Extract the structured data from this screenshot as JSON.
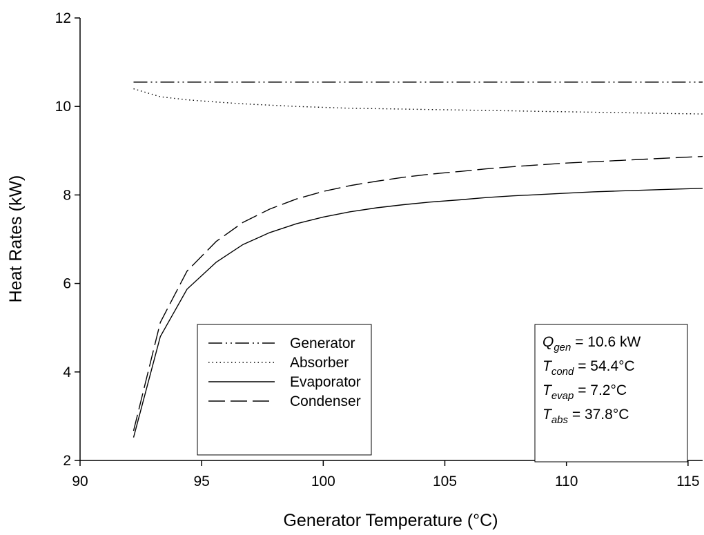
{
  "chart_data": {
    "type": "line",
    "xlabel": "Generator Temperature (°C)",
    "ylabel": "Heat Rates (kW)",
    "xlim": [
      90,
      115.6
    ],
    "ylim": [
      2,
      12
    ],
    "xticks": [
      90,
      95,
      100,
      105,
      110,
      115
    ],
    "yticks": [
      2,
      4,
      6,
      8,
      10,
      12
    ],
    "grid": false,
    "legend_position": "bottom-left",
    "series": [
      {
        "name": "Generator",
        "style": "dash-dot-dot",
        "x": [
          92.2,
          115.6
        ],
        "y": [
          10.55,
          10.55
        ]
      },
      {
        "name": "Absorber",
        "style": "dotted",
        "x": [
          92.2,
          93.3,
          94.4,
          95.6,
          96.7,
          97.8,
          98.9,
          100,
          101.1,
          102.2,
          103.3,
          104.4,
          105.6,
          106.7,
          107.8,
          108.9,
          110,
          111.1,
          112.2,
          113.3,
          114.4,
          115.6
        ],
        "y": [
          10.4,
          10.22,
          10.15,
          10.1,
          10.06,
          10.03,
          10.0,
          9.98,
          9.96,
          9.95,
          9.94,
          9.93,
          9.92,
          9.91,
          9.9,
          9.89,
          9.88,
          9.87,
          9.86,
          9.85,
          9.84,
          9.83
        ]
      },
      {
        "name": "Evaporator",
        "style": "solid",
        "x": [
          92.2,
          93.3,
          94.4,
          95.6,
          96.7,
          97.8,
          98.9,
          100,
          101.1,
          102.2,
          103.3,
          104.4,
          105.6,
          106.7,
          107.8,
          108.9,
          110,
          111.1,
          112.2,
          113.3,
          114.4,
          115.6
        ],
        "y": [
          2.52,
          4.8,
          5.87,
          6.48,
          6.88,
          7.15,
          7.35,
          7.5,
          7.62,
          7.71,
          7.78,
          7.84,
          7.89,
          7.94,
          7.98,
          8.01,
          8.04,
          8.07,
          8.09,
          8.11,
          8.13,
          8.15
        ]
      },
      {
        "name": "Condenser",
        "style": "long-dash",
        "x": [
          92.2,
          93.3,
          94.4,
          95.6,
          96.7,
          97.8,
          98.9,
          100,
          101.1,
          102.2,
          103.3,
          104.4,
          105.6,
          106.7,
          107.8,
          108.9,
          110,
          111.1,
          112.2,
          113.3,
          114.4,
          115.6
        ],
        "y": [
          2.67,
          5.12,
          6.28,
          6.95,
          7.38,
          7.68,
          7.91,
          8.08,
          8.21,
          8.31,
          8.4,
          8.47,
          8.53,
          8.59,
          8.64,
          8.68,
          8.72,
          8.75,
          8.78,
          8.81,
          8.84,
          8.87
        ]
      }
    ],
    "annotations": [
      {
        "var": "Q",
        "sub": "gen",
        "rest": " = 10.6 kW"
      },
      {
        "var": "T",
        "sub": "cond",
        "rest": " = 54.4°C"
      },
      {
        "var": "T",
        "sub": "evap",
        "rest": " = 7.2°C"
      },
      {
        "var": "T",
        "sub": "abs",
        "rest": " = 37.8°C"
      }
    ]
  }
}
